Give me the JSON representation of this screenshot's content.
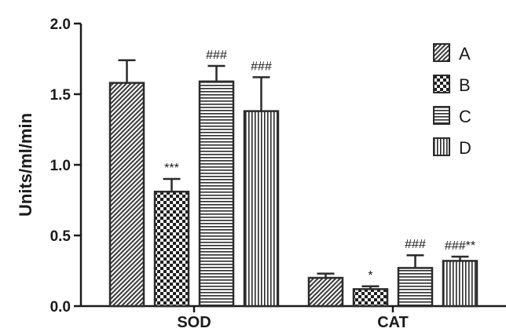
{
  "chart_data": {
    "type": "bar",
    "ylabel": "Units/ml/min",
    "ylim": [
      0,
      2.0
    ],
    "yticks": [
      "0.0",
      "0.5",
      "1.0",
      "1.5",
      "2.0"
    ],
    "categories": [
      "SOD",
      "CAT"
    ],
    "series": [
      {
        "name": "A",
        "values": [
          1.58,
          0.2
        ],
        "errors": [
          0.16,
          0.03
        ],
        "annotations": [
          "",
          ""
        ]
      },
      {
        "name": "B",
        "values": [
          0.81,
          0.12
        ],
        "errors": [
          0.09,
          0.02
        ],
        "annotations": [
          "***",
          "*"
        ]
      },
      {
        "name": "C",
        "values": [
          1.59,
          0.27
        ],
        "errors": [
          0.11,
          0.09
        ],
        "annotations": [
          "###",
          "###"
        ]
      },
      {
        "name": "D",
        "values": [
          1.38,
          0.32
        ],
        "errors": [
          0.24,
          0.03
        ],
        "annotations": [
          "###",
          "###**"
        ]
      }
    ],
    "legend_position": "top-right",
    "grid": false
  },
  "colors": {
    "pattern_stroke": "#2b2b2b",
    "bar_fill": "#ffffff",
    "axis": "#1a1a1a"
  }
}
